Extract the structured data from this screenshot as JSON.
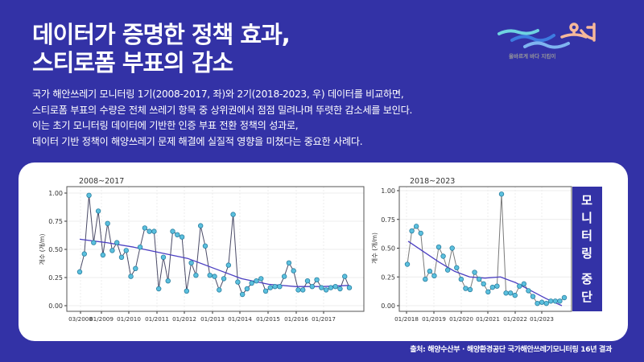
{
  "header": {
    "title_line1": "데이터가 증명한 정책 효과,",
    "title_line2": "스티로폼 부표의 감소"
  },
  "description": [
    "국가 해안쓰레기 모니터링 1기(2008-2017, 좌)와 2기(2018-2023, 우) 데이터를 비교하면,",
    "스티로폼 부표의 수량은 전체 쓰레기 항목 중 상위권에서 점점 밀려나며 뚜렷한 감소세를 보인다.",
    "이는 초기 모니터링 데이터에 기반한 인증 부표 전환 정책의 성과로,",
    "데이터 기반 정책이 해양쓰레기 문제 해결에 실질적 영향을 미쳤다는 중요한 사례다."
  ],
  "logo": {
    "icon": "wave-ocean-logo",
    "tagline": "올바르게 바다 지킴이"
  },
  "source": "출처: 해양수산부 · 해양환경공단 국가해안쓰레기모니터링 16년 결과",
  "colors": {
    "background": "#3332a6",
    "card": "#ffffff",
    "point": "#5bc0de",
    "trend": "#4b3fc2",
    "line": "#555566"
  },
  "chart_data": [
    {
      "type": "line",
      "title": "2008~2017",
      "ylabel": "개수 (개/m)",
      "xlabel": "",
      "ylim": [
        0,
        1.0
      ],
      "yticks": [
        "0.00",
        "0.25",
        "0.50",
        "0.75",
        "1.00"
      ],
      "xticks": [
        "03/2008",
        "01/2009",
        "01/2010",
        "01/2011",
        "01/2012",
        "01/2013",
        "01/2014",
        "01/2015",
        "01/2016",
        "01/2017"
      ],
      "grid": true,
      "series": [
        {
          "name": "observed",
          "values": [
            0.3,
            0.46,
            0.98,
            0.56,
            0.84,
            0.45,
            0.73,
            0.49,
            0.56,
            0.43,
            0.49,
            0.26,
            0.33,
            0.52,
            0.69,
            0.66,
            0.66,
            0.15,
            0.43,
            0.22,
            0.66,
            0.63,
            0.61,
            0.13,
            0.38,
            0.27,
            0.71,
            0.53,
            0.27,
            0.26,
            0.14,
            0.24,
            0.36,
            0.81,
            0.21,
            0.1,
            0.15,
            0.2,
            0.22,
            0.24,
            0.13,
            0.16,
            0.17,
            0.17,
            0.26,
            0.38,
            0.31,
            0.14,
            0.14,
            0.22,
            0.17,
            0.23,
            0.16,
            0.14,
            0.16,
            0.17,
            0.15,
            0.26,
            0.16
          ]
        },
        {
          "name": "trend",
          "values": [
            0.59,
            0.56,
            0.52,
            0.47,
            0.42,
            0.33,
            0.24,
            0.19,
            0.17,
            0.17,
            0.18
          ]
        }
      ]
    },
    {
      "type": "line",
      "title": "2018~2023",
      "ylabel": "개수 (개/m)",
      "xlabel": "",
      "ylim": [
        0,
        1.0
      ],
      "yticks": [
        "0.00",
        "0.25",
        "0.50",
        "0.75",
        "1.00"
      ],
      "xticks": [
        "01/2018",
        "01/2019",
        "01/2020",
        "01/2021",
        "01/2022",
        "01/2023"
      ],
      "grid": true,
      "annotation": "모니터링 중단",
      "series": [
        {
          "name": "observed",
          "values": [
            0.36,
            0.65,
            0.69,
            0.63,
            0.23,
            0.3,
            0.26,
            0.51,
            0.43,
            0.31,
            0.5,
            0.33,
            0.23,
            0.15,
            0.14,
            0.29,
            0.23,
            0.19,
            0.12,
            0.16,
            0.17,
            0.97,
            0.11,
            0.11,
            0.09,
            0.17,
            0.19,
            0.13,
            0.08,
            0.02,
            0.03,
            0.02,
            0.04,
            0.04,
            0.04,
            0.07
          ]
        },
        {
          "name": "trend",
          "values": [
            0.56,
            0.47,
            0.38,
            0.3,
            0.25,
            0.24,
            0.25,
            0.2,
            0.13,
            0.06,
            0.0
          ]
        }
      ]
    }
  ]
}
